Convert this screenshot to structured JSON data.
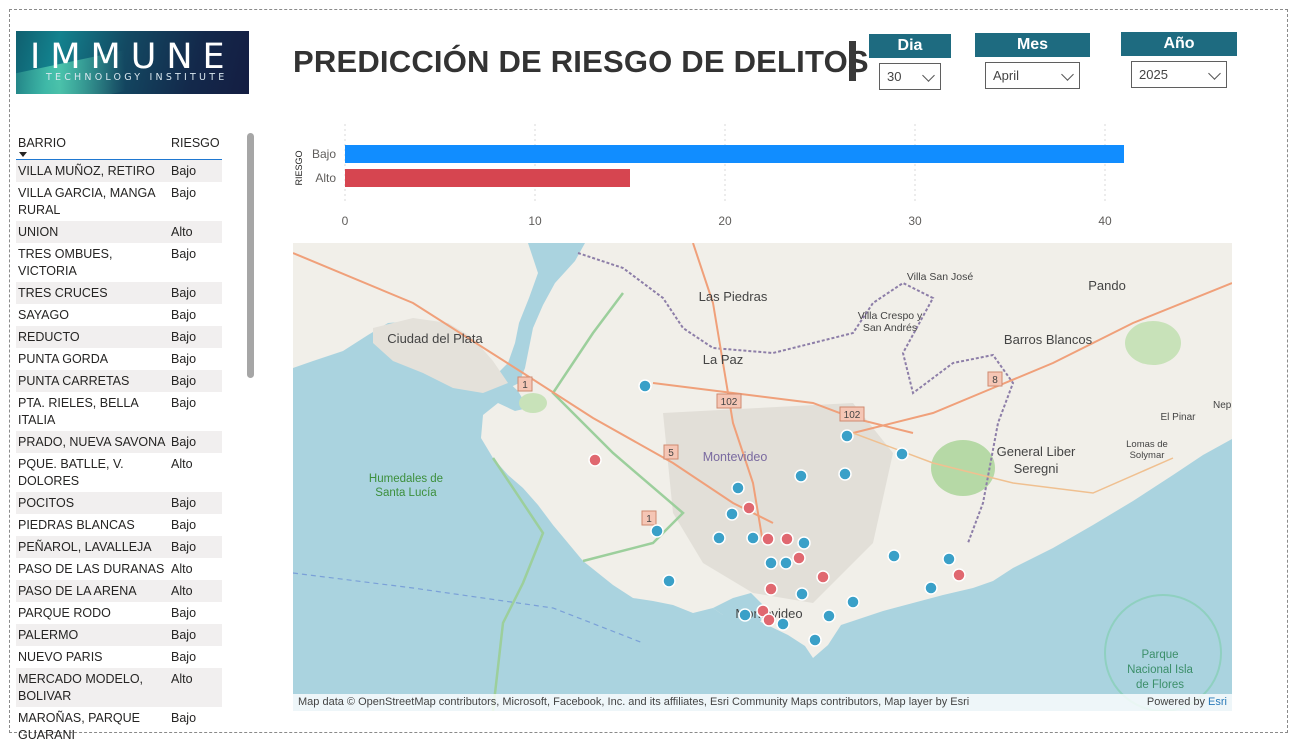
{
  "logo": {
    "main": "IMMUNE",
    "sub": "TECHNOLOGY INSTITUTE"
  },
  "title": "PREDICCIÓN DE RIESGO DE DELITOS",
  "filters": {
    "dia": {
      "label": "Dia",
      "value": "30"
    },
    "mes": {
      "label": "Mes",
      "value": "April"
    },
    "anio": {
      "label": "Año",
      "value": "2025"
    }
  },
  "table": {
    "headers": {
      "barrio": "BARRIO",
      "riesgo": "RIESGO"
    },
    "rows": [
      {
        "barrio": "VILLA MUÑOZ, RETIRO",
        "riesgo": "Bajo"
      },
      {
        "barrio": "VILLA GARCIA, MANGA RURAL",
        "riesgo": "Bajo"
      },
      {
        "barrio": "UNION",
        "riesgo": "Alto"
      },
      {
        "barrio": "TRES OMBUES, VICTORIA",
        "riesgo": "Bajo"
      },
      {
        "barrio": "TRES CRUCES",
        "riesgo": "Bajo"
      },
      {
        "barrio": "SAYAGO",
        "riesgo": "Bajo"
      },
      {
        "barrio": "REDUCTO",
        "riesgo": "Bajo"
      },
      {
        "barrio": "PUNTA GORDA",
        "riesgo": "Bajo"
      },
      {
        "barrio": "PUNTA CARRETAS",
        "riesgo": "Bajo"
      },
      {
        "barrio": "PTA. RIELES, BELLA ITALIA",
        "riesgo": "Bajo"
      },
      {
        "barrio": "PRADO, NUEVA SAVONA",
        "riesgo": "Bajo"
      },
      {
        "barrio": "PQUE. BATLLE, V. DOLORES",
        "riesgo": "Alto"
      },
      {
        "barrio": "POCITOS",
        "riesgo": "Bajo"
      },
      {
        "barrio": "PIEDRAS BLANCAS",
        "riesgo": "Bajo"
      },
      {
        "barrio": "PEÑAROL, LAVALLEJA",
        "riesgo": "Bajo"
      },
      {
        "barrio": "PASO DE LAS DURANAS",
        "riesgo": "Alto"
      },
      {
        "barrio": "PASO DE LA ARENA",
        "riesgo": "Alto"
      },
      {
        "barrio": "PARQUE RODO",
        "riesgo": "Bajo"
      },
      {
        "barrio": "PALERMO",
        "riesgo": "Bajo"
      },
      {
        "barrio": "NUEVO PARIS",
        "riesgo": "Bajo"
      },
      {
        "barrio": "MERCADO MODELO, BOLIVAR",
        "riesgo": "Alto"
      },
      {
        "barrio": "MAROÑAS, PARQUE GUARANI",
        "riesgo": "Bajo"
      }
    ]
  },
  "chart_data": {
    "type": "bar",
    "orientation": "horizontal",
    "ylabel": "RIESGO",
    "categories": [
      "Bajo",
      "Alto"
    ],
    "values": [
      41,
      15
    ],
    "colors": [
      "#118dff",
      "#d64550"
    ],
    "xticks": [
      0,
      10,
      20,
      30,
      40
    ],
    "xlim": [
      0,
      43
    ],
    "grid": true
  },
  "map": {
    "attribution": "Map data © OpenStreetMap contributors, Microsoft, Facebook, Inc. and its affiliates, Esri Community Maps contributors, Map layer by Esri",
    "powered_by": "Powered by",
    "powered_brand": "Esri",
    "labels": {
      "las_piedras": "Las Piedras",
      "la_paz": "La Paz",
      "pando": "Pando",
      "villa_san_jose": "Villa San José",
      "villa_crespo_1": "Villa Crespo y",
      "villa_crespo_2": "San Andrés",
      "ciudad_del_plata": "Ciudad del Plata",
      "barros_blancos": "Barros Blancos",
      "general_liber_1": "General Liber",
      "general_liber_2": "Seregni",
      "humedales_1": "Humedales de",
      "humedales_2": "Santa Lucía",
      "montevideo_area": "Montevideo",
      "montevideo_city": "Montevideo",
      "el_pinar": "El Pinar",
      "lomas_1": "Lomas de",
      "lomas_2": "Solymar",
      "nep": "Nep",
      "parque_1": "Parque",
      "parque_2": "Nacional Isla",
      "parque_3": "de Flores"
    },
    "road_shields": {
      "r1a": "1",
      "r1b": "1",
      "r102a": "102",
      "r102b": "102",
      "r5": "5",
      "r8": "8"
    },
    "point_colors": {
      "bajo": "#3aa0c8",
      "alto": "#e06870"
    }
  }
}
